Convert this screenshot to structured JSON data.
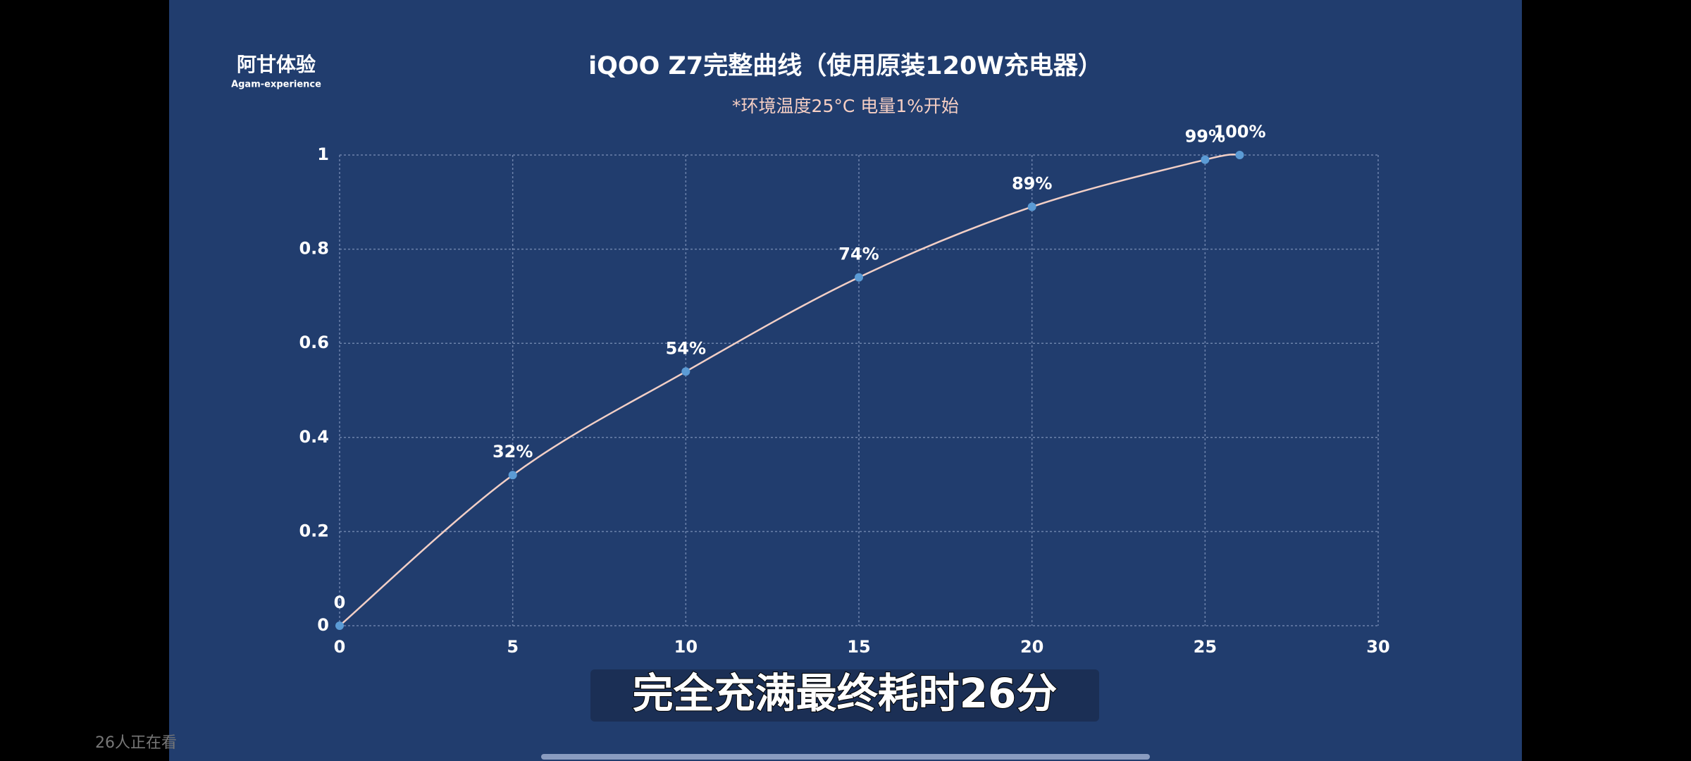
{
  "chart_data": {
    "type": "line",
    "title": "iQOO Z7完整曲线（使用原装120W充电器）",
    "subtitle": "*环境温度25°C 电量1%开始",
    "x": [
      0,
      5,
      10,
      15,
      20,
      25,
      26
    ],
    "series": [
      {
        "color": "#f2cfc6",
        "values": [
          0,
          0.32,
          0.54,
          0.74,
          0.89,
          0.99,
          1
        ],
        "value_labels": [
          "0",
          "32%",
          "54%",
          "74%",
          "89%",
          "99%",
          "100%"
        ]
      }
    ],
    "point_color": "#5b9bd5",
    "xlim": [
      0,
      30
    ],
    "xticks": [
      0,
      5,
      10,
      15,
      20,
      25,
      30
    ],
    "ylim": [
      0,
      1
    ],
    "yticks": [
      0,
      0.2,
      0.4,
      0.6,
      0.8,
      1
    ],
    "grid": true
  },
  "watermark": {
    "name": "阿甘体验",
    "sub": "Agam-experience"
  },
  "caption": "完全充满最终耗时26分",
  "viewers": "26人正在看"
}
